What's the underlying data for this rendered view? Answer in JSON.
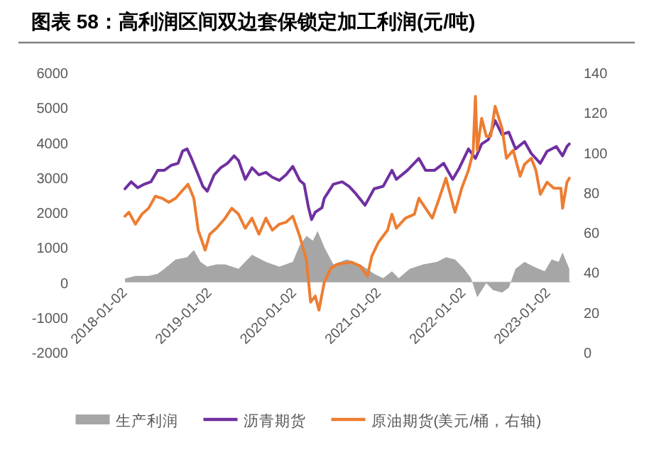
{
  "chart_data": {
    "type": "line",
    "title": "图表 58：高利润区间双边套保锁定加工利润(元/吨)",
    "xlim": [
      "2018-01-02",
      "2023-04-10"
    ],
    "xticks": [
      "2018-01-02",
      "2019-01-02",
      "2020-01-02",
      "2021-01-02",
      "2022-01-02",
      "2023-01-02"
    ],
    "ylim": [
      -2000,
      6000
    ],
    "yticks": [
      -2000,
      -1000,
      0,
      1000,
      2000,
      3000,
      4000,
      5000,
      6000
    ],
    "y2lim": [
      0,
      140
    ],
    "y2ticks": [
      0,
      20,
      40,
      60,
      80,
      100,
      120,
      140
    ],
    "legend": "bottom",
    "series": [
      {
        "name": "生产利润",
        "type": "area",
        "color": "#a6a6a6",
        "x": [
          "2018-01-02",
          "2018-02-16",
          "2018-04-14",
          "2018-05-23",
          "2018-06-21",
          "2018-08-09",
          "2018-09-27",
          "2018-10-26",
          "2018-11-24",
          "2018-12-23",
          "2019-02-01",
          "2019-03-10",
          "2019-05-07",
          "2019-07-04",
          "2019-09-02",
          "2019-10-30",
          "2019-12-27",
          "2020-01-26",
          "2020-02-24",
          "2020-03-23",
          "2020-04-12",
          "2020-05-11",
          "2020-06-19",
          "2020-08-16",
          "2020-10-13",
          "2020-12-12",
          "2021-01-20",
          "2021-02-27",
          "2021-03-28",
          "2021-05-15",
          "2021-07-12",
          "2021-09-09",
          "2021-10-18",
          "2021-11-26",
          "2022-01-04",
          "2022-02-03",
          "2022-03-02",
          "2022-04-10",
          "2022-05-09",
          "2022-06-17",
          "2022-07-16",
          "2022-08-14",
          "2022-09-22",
          "2022-11-01",
          "2022-12-18",
          "2023-01-17",
          "2023-02-16",
          "2023-03-05",
          "2023-04-03"
        ],
        "values": [
          100,
          180,
          180,
          240,
          380,
          650,
          710,
          920,
          580,
          440,
          510,
          510,
          380,
          780,
          580,
          440,
          580,
          1050,
          1320,
          1190,
          1460,
          1000,
          510,
          650,
          510,
          240,
          110,
          310,
          110,
          380,
          510,
          580,
          710,
          650,
          380,
          110,
          -430,
          -30,
          -230,
          -300,
          -160,
          380,
          580,
          440,
          310,
          650,
          580,
          850,
          380
        ]
      },
      {
        "name": "沥青期货",
        "color": "#7030a0",
        "x": [
          "2018-01-02",
          "2018-01-29",
          "2018-02-26",
          "2018-03-26",
          "2018-04-24",
          "2018-05-23",
          "2018-06-21",
          "2018-07-20",
          "2018-08-19",
          "2018-09-08",
          "2018-09-27",
          "2018-10-16",
          "2018-11-14",
          "2018-12-04",
          "2018-12-23",
          "2019-01-22",
          "2019-02-19",
          "2019-03-20",
          "2019-04-18",
          "2019-05-07",
          "2019-06-05",
          "2019-07-04",
          "2019-08-03",
          "2019-09-02",
          "2019-09-30",
          "2019-10-30",
          "2019-11-28",
          "2019-12-27",
          "2020-01-26",
          "2020-02-14",
          "2020-03-04",
          "2020-03-17",
          "2020-04-02",
          "2020-05-01",
          "2020-05-11",
          "2020-06-19",
          "2020-07-27",
          "2020-08-26",
          "2020-09-24",
          "2020-11-03",
          "2020-12-12",
          "2021-01-20",
          "2021-02-27",
          "2021-03-18",
          "2021-05-05",
          "2021-06-23",
          "2021-07-22",
          "2021-08-30",
          "2021-10-08",
          "2021-11-16",
          "2021-12-15",
          "2022-01-23",
          "2022-02-22",
          "2022-03-21",
          "2022-04-19",
          "2022-05-18",
          "2022-06-17",
          "2022-07-16",
          "2022-08-14",
          "2022-09-22",
          "2022-10-21",
          "2022-11-29",
          "2022-12-28",
          "2023-02-06",
          "2023-03-05",
          "2023-03-24",
          "2023-04-03"
        ],
        "values": [
          2670,
          2870,
          2700,
          2800,
          2870,
          3200,
          3200,
          3340,
          3400,
          3750,
          3810,
          3540,
          3070,
          2740,
          2600,
          3070,
          3270,
          3400,
          3610,
          3480,
          2940,
          3270,
          3070,
          3140,
          3000,
          2910,
          3070,
          3310,
          2910,
          2800,
          2130,
          1790,
          2000,
          2130,
          2400,
          2800,
          2870,
          2740,
          2530,
          2200,
          2670,
          2740,
          3200,
          2940,
          3200,
          3540,
          3200,
          3200,
          3400,
          2940,
          3270,
          3810,
          3540,
          3950,
          4080,
          4620,
          4220,
          4290,
          3810,
          4020,
          3680,
          3400,
          3740,
          3880,
          3610,
          3880,
          3950
        ]
      },
      {
        "name": "原油期货(美元/桶，右轴)",
        "axis": "y2",
        "color": "#ed7d31",
        "x": [
          "2018-01-02",
          "2018-01-19",
          "2018-02-16",
          "2018-03-16",
          "2018-04-14",
          "2018-05-13",
          "2018-06-11",
          "2018-07-10",
          "2018-08-09",
          "2018-09-08",
          "2018-10-01",
          "2018-10-26",
          "2018-11-14",
          "2018-12-14",
          "2019-01-03",
          "2019-02-01",
          "2019-03-10",
          "2019-04-08",
          "2019-05-07",
          "2019-06-05",
          "2019-07-04",
          "2019-08-03",
          "2019-09-02",
          "2019-09-30",
          "2019-10-30",
          "2019-11-28",
          "2019-12-27",
          "2020-01-26",
          "2020-02-24",
          "2020-03-13",
          "2020-04-02",
          "2020-04-18",
          "2020-05-11",
          "2020-06-09",
          "2020-07-08",
          "2020-09-05",
          "2020-10-13",
          "2020-11-13",
          "2020-12-02",
          "2020-12-31",
          "2021-02-08",
          "2021-02-27",
          "2021-03-18",
          "2021-04-26",
          "2021-06-04",
          "2021-06-23",
          "2021-07-22",
          "2021-08-20",
          "2021-09-19",
          "2021-10-18",
          "2021-11-26",
          "2021-12-25",
          "2022-01-23",
          "2022-02-12",
          "2022-02-22",
          "2022-03-02",
          "2022-03-21",
          "2022-04-10",
          "2022-04-29",
          "2022-05-18",
          "2022-06-17",
          "2022-07-06",
          "2022-08-04",
          "2022-09-03",
          "2022-09-22",
          "2022-10-21",
          "2022-11-10",
          "2022-11-29",
          "2022-12-28",
          "2023-01-27",
          "2023-02-26",
          "2023-03-05",
          "2023-03-24",
          "2023-04-03"
        ],
        "values": [
          68,
          70,
          64,
          69,
          72,
          78,
          77,
          75,
          77,
          81,
          84,
          77,
          61,
          51,
          59,
          62,
          67,
          72,
          69,
          62,
          67,
          59,
          67,
          61,
          64,
          65,
          68,
          58,
          46,
          25,
          28,
          21,
          35,
          42,
          44,
          45,
          43,
          38,
          48,
          55,
          61,
          69,
          62,
          67,
          69,
          77,
          72,
          67,
          77,
          87,
          70,
          82,
          91,
          100,
          128,
          101,
          117,
          108,
          108,
          123,
          112,
          97,
          101,
          88,
          94,
          97,
          91,
          79,
          85,
          82,
          82,
          72,
          85,
          87
        ]
      }
    ]
  }
}
